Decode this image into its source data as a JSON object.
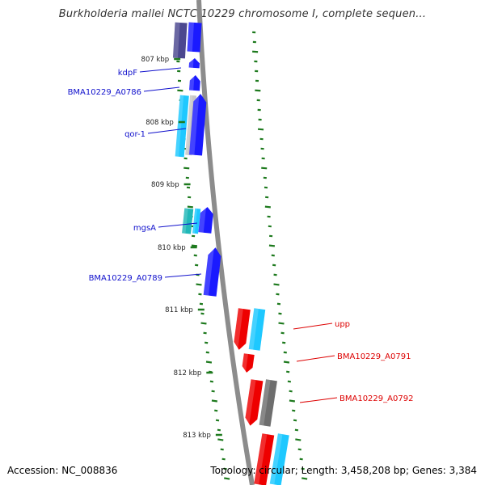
{
  "title": "Burkholderia mallei NCTC 10229 chromosome I, complete sequen...",
  "footer": {
    "accession": "Accession: NC_008836",
    "summary": "Topology: circular; Length: 3,458,208 bp; Genes: 3,384"
  },
  "colors": {
    "backbone": "#8c8c8c",
    "forward_label": "#1010cc",
    "reverse_label": "#dd0000",
    "tick": "#1e7a1e",
    "cds_blue": "#1a1aff",
    "cds_red": "#ee0000",
    "cds_cyan": "#1ec8ff",
    "cds_teal": "#20b8b8",
    "cds_navy": "#4b478f",
    "cds_grey": "#6e6e6e",
    "cds_light_grey": "#c6c6c6"
  },
  "ruler": {
    "unit": "kbp",
    "ticks": [
      {
        "label": "807 kbp",
        "kbp": 807
      },
      {
        "label": "808 kbp",
        "kbp": 808
      },
      {
        "label": "809 kbp",
        "kbp": 809
      },
      {
        "label": "810 kbp",
        "kbp": 810
      },
      {
        "label": "811 kbp",
        "kbp": 811
      },
      {
        "label": "812 kbp",
        "kbp": 812
      },
      {
        "label": "813 kbp",
        "kbp": 813
      }
    ]
  },
  "genes": {
    "forward": [
      {
        "name": "kdpF"
      },
      {
        "name": "BMA10229_A0786"
      },
      {
        "name": "qor-1"
      },
      {
        "name": "mgsA"
      },
      {
        "name": "BMA10229_A0789"
      }
    ],
    "reverse": [
      {
        "name": "upp"
      },
      {
        "name": "BMA10229_A0791"
      },
      {
        "name": "BMA10229_A0792"
      }
    ]
  }
}
